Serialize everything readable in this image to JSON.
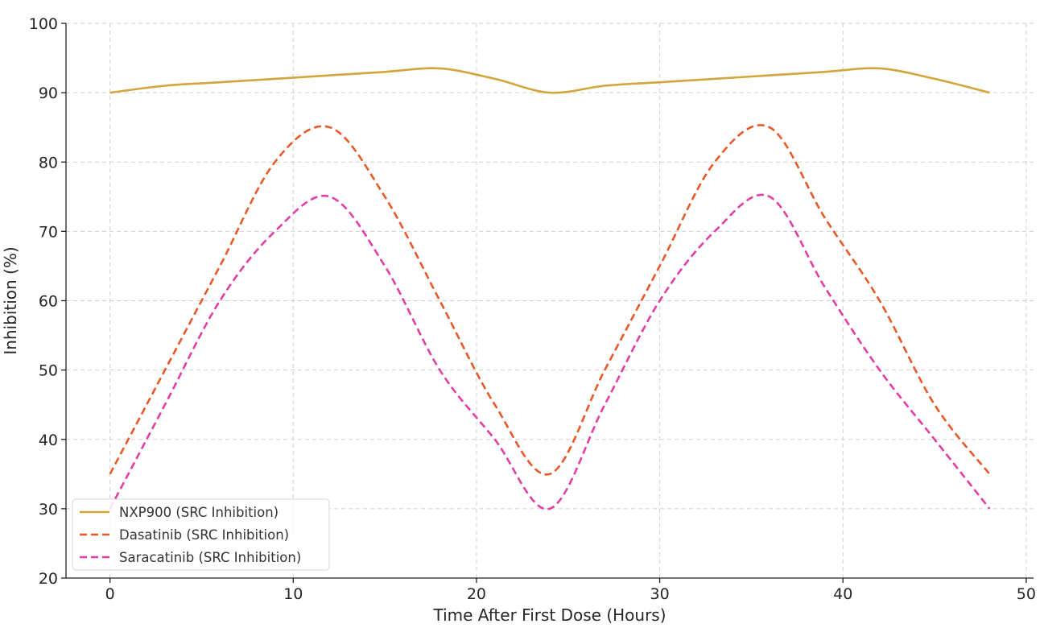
{
  "chart_data": {
    "type": "line",
    "title": "",
    "xlabel": "Time After First Dose (Hours)",
    "ylabel": "Inhibition (%)",
    "xlim": [
      -2.4,
      50.4
    ],
    "ylim": [
      20,
      100
    ],
    "xticks": [
      0,
      10,
      20,
      30,
      40,
      50
    ],
    "yticks": [
      20,
      30,
      40,
      50,
      60,
      70,
      80,
      90,
      100
    ],
    "grid": true,
    "legend_position": "lower-left",
    "x": [
      0,
      3,
      6,
      9,
      12,
      15,
      18,
      21,
      24,
      27,
      30,
      33,
      36,
      39,
      42,
      45,
      48
    ],
    "series": [
      {
        "name": "NXP900 (SRC Inhibition)",
        "color": "#d4a53a",
        "style": "solid",
        "values": [
          90,
          91,
          91.5,
          92,
          92.5,
          93,
          93.5,
          92,
          90,
          91,
          91.5,
          92,
          92.5,
          93,
          93.5,
          92,
          90
        ]
      },
      {
        "name": "Dasatinib (SRC Inhibition)",
        "color": "#e8592a",
        "style": "dashed",
        "values": [
          35,
          50,
          65,
          80,
          85,
          75,
          60,
          45,
          35,
          50,
          65,
          80,
          85,
          72,
          60,
          45,
          35
        ]
      },
      {
        "name": "Saracatinib (SRC Inhibition)",
        "color": "#e23ea4",
        "style": "dashed",
        "values": [
          30,
          45,
          60,
          70,
          75,
          65,
          50,
          40,
          30,
          45,
          60,
          70,
          75,
          62,
          50,
          40,
          30
        ]
      }
    ]
  }
}
